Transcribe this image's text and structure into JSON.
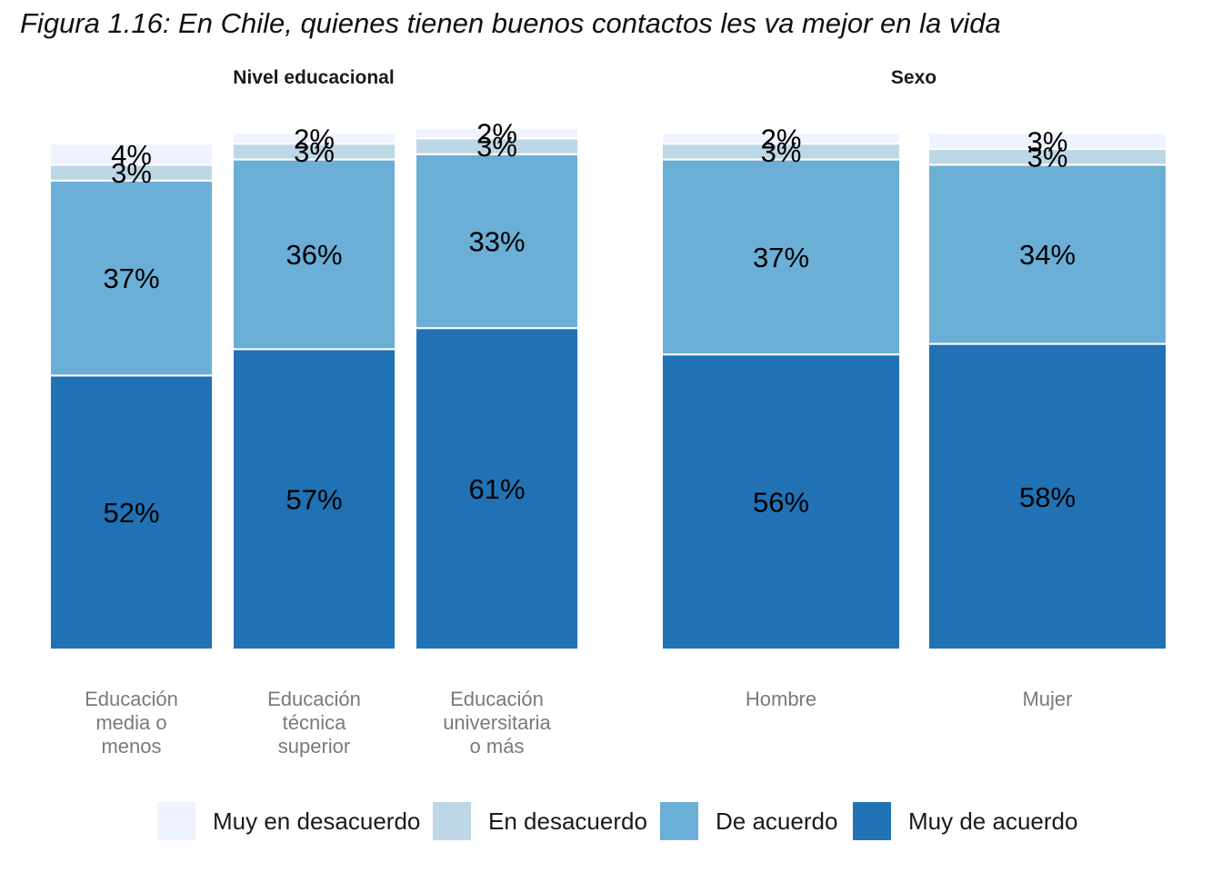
{
  "chart_data": {
    "type": "bar",
    "stacked": true,
    "title": "Figura 1.16: En Chile, quienes tienen buenos contactos les va mejor en la vida",
    "ylim": [
      0,
      100
    ],
    "legend": {
      "placement": "bottom",
      "entries": [
        "Muy en desacuerdo",
        "En desacuerdo",
        "De acuerdo",
        "Muy de acuerdo"
      ]
    },
    "colors": {
      "Muy en desacuerdo": "#eff3ff",
      "En desacuerdo": "#bdd7e7",
      "De acuerdo": "#6baed6",
      "Muy de acuerdo": "#2171b5"
    },
    "panels": [
      {
        "title": "Nivel educacional",
        "categories": [
          "Educación\nmedia o\nmenos",
          "Educación\ntécnica\nsuperior",
          "Educación\nuniversitaria\no más"
        ],
        "series": [
          {
            "name": "Muy de acuerdo",
            "values": [
              52,
              57,
              61
            ]
          },
          {
            "name": "De acuerdo",
            "values": [
              37,
              36,
              33
            ]
          },
          {
            "name": "En desacuerdo",
            "values": [
              3,
              3,
              3
            ]
          },
          {
            "name": "Muy en desacuerdo",
            "values": [
              4,
              2,
              2
            ]
          }
        ]
      },
      {
        "title": "Sexo",
        "categories": [
          "Hombre",
          "Mujer"
        ],
        "series": [
          {
            "name": "Muy de acuerdo",
            "values": [
              56,
              58
            ]
          },
          {
            "name": "De acuerdo",
            "values": [
              37,
              34
            ]
          },
          {
            "name": "En desacuerdo",
            "values": [
              3,
              3
            ]
          },
          {
            "name": "Muy en desacuerdo",
            "values": [
              2,
              3
            ]
          }
        ]
      }
    ]
  }
}
